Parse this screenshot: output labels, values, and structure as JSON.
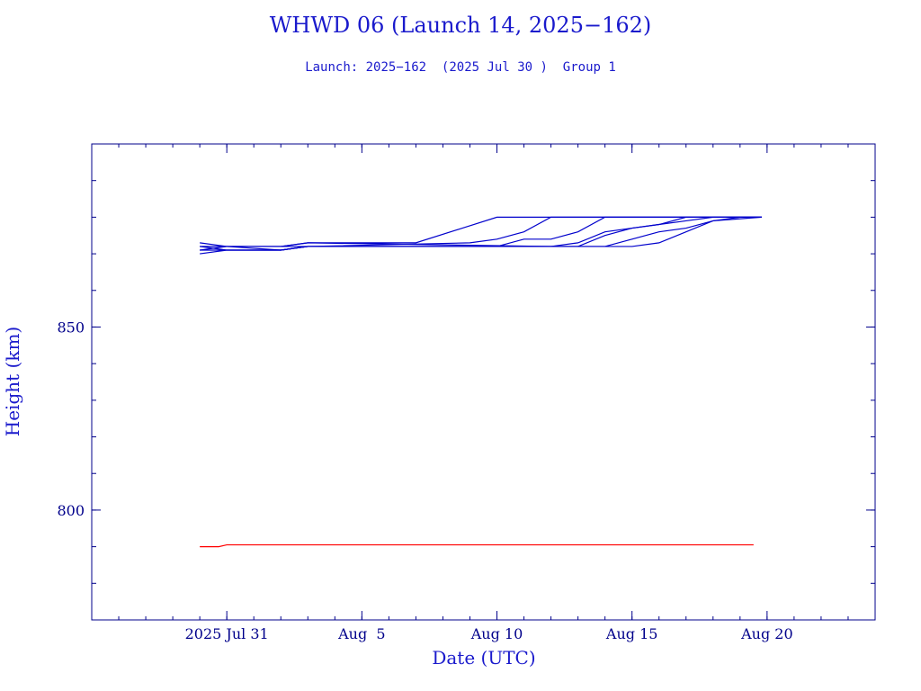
{
  "title": "WHWD 06 (Launch 14, 2025−162)",
  "subtitle": "Launch: 2025−162  (2025 Jul 30 )  Group 1",
  "colors": {
    "axis": "#00008b",
    "series_primary": "#0000cc",
    "series_red": "#ff0000",
    "text": "#1a1acc"
  },
  "chart_data": {
    "type": "line",
    "title": "WHWD 06 (Launch 14, 2025−162)",
    "subtitle": "Launch: 2025−162  (2025 Jul 30 )  Group 1",
    "xlabel": "Date (UTC)",
    "ylabel": "Height (km)",
    "xlim": [
      "2025-07-26",
      "2025-08-24"
    ],
    "ylim": [
      770,
      900
    ],
    "grid": false,
    "legend": "none",
    "x_ticks": [
      {
        "date": "2025-07-31",
        "label": "2025 Jul 31"
      },
      {
        "date": "2025-08-05",
        "label": "Aug  5"
      },
      {
        "date": "2025-08-10",
        "label": "Aug 10"
      },
      {
        "date": "2025-08-15",
        "label": "Aug 15"
      },
      {
        "date": "2025-08-20",
        "label": "Aug 20"
      }
    ],
    "y_ticks": [
      {
        "value": 800,
        "label": "800"
      },
      {
        "value": 850,
        "label": "850"
      }
    ],
    "series": [
      {
        "color": "#0000cc",
        "points": [
          [
            "2025-07-30",
            872
          ],
          [
            "2025-07-31",
            872
          ],
          [
            "2025-08-02",
            872
          ],
          [
            "2025-08-03",
            873
          ],
          [
            "2025-08-07",
            873
          ],
          [
            "2025-08-10",
            880
          ],
          [
            "2025-08-19.8",
            880
          ]
        ]
      },
      {
        "color": "#0000cc",
        "points": [
          [
            "2025-07-30",
            871
          ],
          [
            "2025-07-31",
            871
          ],
          [
            "2025-08-02",
            871
          ],
          [
            "2025-08-03",
            872
          ],
          [
            "2025-08-09",
            873
          ],
          [
            "2025-08-10",
            874
          ],
          [
            "2025-08-11",
            876
          ],
          [
            "2025-08-12",
            880
          ],
          [
            "2025-08-19.8",
            880
          ]
        ]
      },
      {
        "color": "#0000cc",
        "points": [
          [
            "2025-07-30",
            872
          ],
          [
            "2025-07-31",
            871
          ],
          [
            "2025-08-02",
            871
          ],
          [
            "2025-08-03",
            872
          ],
          [
            "2025-08-10",
            872
          ],
          [
            "2025-08-11",
            874
          ],
          [
            "2025-08-12",
            874
          ],
          [
            "2025-08-13",
            876
          ],
          [
            "2025-08-14",
            880
          ],
          [
            "2025-08-19.8",
            880
          ]
        ]
      },
      {
        "color": "#0000cc",
        "points": [
          [
            "2025-07-30",
            873
          ],
          [
            "2025-07-31",
            872
          ],
          [
            "2025-08-02",
            872
          ],
          [
            "2025-08-03",
            873
          ],
          [
            "2025-08-12",
            872
          ],
          [
            "2025-08-13",
            873
          ],
          [
            "2025-08-14",
            876
          ],
          [
            "2025-08-15",
            877
          ],
          [
            "2025-08-16",
            878
          ],
          [
            "2025-08-17",
            880
          ],
          [
            "2025-08-19.8",
            880
          ]
        ]
      },
      {
        "color": "#0000cc",
        "points": [
          [
            "2025-07-30",
            870
          ],
          [
            "2025-07-31",
            871
          ],
          [
            "2025-08-02",
            871
          ],
          [
            "2025-08-03",
            872
          ],
          [
            "2025-08-13",
            872
          ],
          [
            "2025-08-14",
            875
          ],
          [
            "2025-08-15",
            877
          ],
          [
            "2025-08-16",
            878
          ],
          [
            "2025-08-17",
            879
          ],
          [
            "2025-08-18",
            880
          ],
          [
            "2025-08-19.8",
            880
          ]
        ]
      },
      {
        "color": "#0000cc",
        "points": [
          [
            "2025-07-30",
            871
          ],
          [
            "2025-07-31",
            872
          ],
          [
            "2025-08-02",
            872
          ],
          [
            "2025-08-03",
            872
          ],
          [
            "2025-08-14",
            872
          ],
          [
            "2025-08-15",
            874
          ],
          [
            "2025-08-16",
            876
          ],
          [
            "2025-08-17",
            877
          ],
          [
            "2025-08-18",
            879
          ],
          [
            "2025-08-19.8",
            880
          ]
        ]
      },
      {
        "color": "#0000cc",
        "points": [
          [
            "2025-07-30",
            872
          ],
          [
            "2025-07-31",
            872
          ],
          [
            "2025-08-02",
            871
          ],
          [
            "2025-08-03",
            872
          ],
          [
            "2025-08-15",
            872
          ],
          [
            "2025-08-16",
            873
          ],
          [
            "2025-08-17",
            876
          ],
          [
            "2025-08-18",
            879
          ],
          [
            "2025-08-19",
            880
          ],
          [
            "2025-08-19.8",
            880
          ]
        ]
      },
      {
        "color": "#ff0000",
        "points": [
          [
            "2025-07-30",
            790
          ],
          [
            "2025-07-30.7",
            790
          ],
          [
            "2025-07-31",
            790.5
          ],
          [
            "2025-08-19.5",
            790.5
          ]
        ]
      }
    ]
  }
}
